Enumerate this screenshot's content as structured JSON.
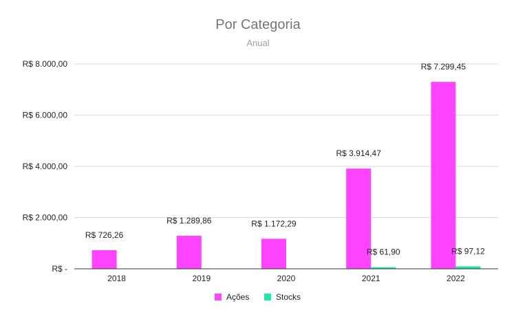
{
  "chart_data": {
    "type": "bar",
    "title": "Por Categoria",
    "subtitle": "Anual",
    "categories": [
      "2018",
      "2019",
      "2020",
      "2021",
      "2022"
    ],
    "series": [
      {
        "name": "Ações",
        "color": "#ff44ff",
        "values": [
          726.26,
          1289.86,
          1172.29,
          3914.47,
          7299.45
        ],
        "labels": [
          "R$ 726,26",
          "R$ 1.289,86",
          "R$ 1.172,29",
          "R$ 3.914,47",
          "R$ 7.299,45"
        ]
      },
      {
        "name": "Stocks",
        "color": "#1de9a0",
        "values": [
          0,
          0,
          0,
          61.9,
          97.12
        ],
        "labels": [
          "",
          "",
          "",
          "R$ 61,90",
          "R$ 97,12"
        ]
      }
    ],
    "ylim": [
      0,
      8000
    ],
    "yticks": [
      0,
      2000,
      4000,
      6000,
      8000
    ],
    "ytick_labels": [
      "R$ -",
      "R$ 2.000,00",
      "R$ 4.000,00",
      "R$ 6.000,00",
      "R$ 8.000,00"
    ],
    "grid": true,
    "legend_position": "bottom"
  }
}
